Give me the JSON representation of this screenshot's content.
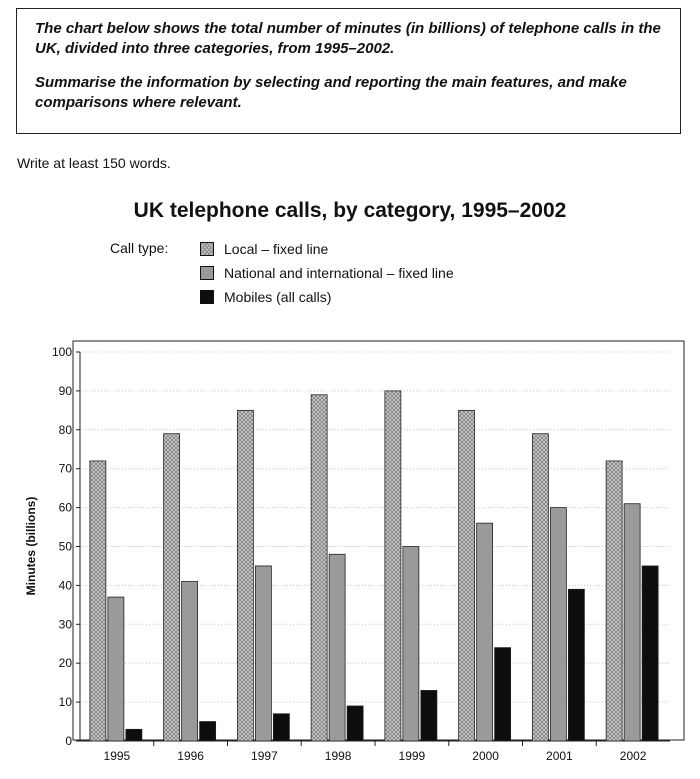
{
  "task": {
    "paragraph1": "The chart below shows the total number of minutes (in billions) of telephone calls in the UK, divided into three categories, from 1995–2002.",
    "paragraph2": "Summarise the information by selecting and reporting the main features, and make comparisons where relevant."
  },
  "instruction": "Write at least 150 words.",
  "chart_data": {
    "type": "bar",
    "title": "UK telephone calls, by category, 1995–2002",
    "legend_caption": "Call type:",
    "legend_placement": "top-left",
    "xlabel": "",
    "ylabel": "Minutes (billions)",
    "ylim": [
      0,
      100
    ],
    "yticks": [
      0,
      10,
      20,
      30,
      40,
      50,
      60,
      70,
      80,
      90,
      100
    ],
    "grid": true,
    "categories": [
      "1995",
      "1996",
      "1997",
      "1998",
      "1999",
      "2000",
      "2001",
      "2002"
    ],
    "series": [
      {
        "name": "Local – fixed line",
        "values": [
          72,
          79,
          85,
          89,
          90,
          85,
          79,
          72
        ],
        "color": "#c8c8c8",
        "pattern": "crosshatch"
      },
      {
        "name": "National and international – fixed line",
        "values": [
          37,
          41,
          45,
          48,
          50,
          56,
          60,
          61
        ],
        "color": "#9a9a9a",
        "pattern": "solid"
      },
      {
        "name": "Mobiles (all calls)",
        "values": [
          3,
          5,
          7,
          9,
          13,
          24,
          39,
          45
        ],
        "color": "#0d0d0d",
        "pattern": "solid"
      }
    ]
  }
}
